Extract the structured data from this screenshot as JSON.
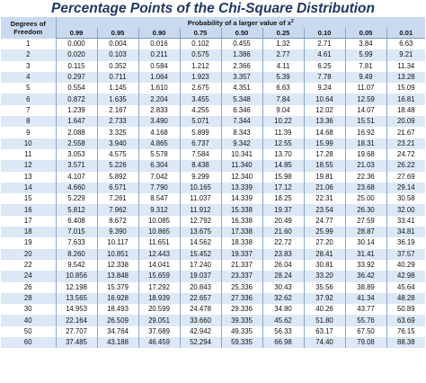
{
  "title": "Percentage Points of the Chi-Square Distribution",
  "header": {
    "dof_label_line1": "Degrees of",
    "dof_label_line2": "Freedom",
    "probability_label": "Probability of a larger value of x",
    "probability_superscript": "2"
  },
  "columns": [
    "0.99",
    "0.95",
    "0.90",
    "0.75",
    "0.50",
    "0.25",
    "0.10",
    "0.05",
    "0.01"
  ],
  "rows": [
    {
      "df": "1",
      "values": [
        "0.000",
        "0.004",
        "0.016",
        "0.102",
        "0.455",
        "1.32",
        "2.71",
        "3.84",
        "6.63"
      ]
    },
    {
      "df": "2",
      "values": [
        "0.020",
        "0.103",
        "0.211",
        "0.575",
        "1.386",
        "2.77",
        "4.61",
        "5.99",
        "9.21"
      ]
    },
    {
      "df": "3",
      "values": [
        "0.115",
        "0.352",
        "0.584",
        "1.212",
        "2.366",
        "4.11",
        "6.25",
        "7.81",
        "11.34"
      ]
    },
    {
      "df": "4",
      "values": [
        "0.297",
        "0.711",
        "1.064",
        "1.923",
        "3.357",
        "5.39",
        "7.78",
        "9.49",
        "13.28"
      ]
    },
    {
      "df": "5",
      "values": [
        "0.554",
        "1.145",
        "1.610",
        "2.675",
        "4.351",
        "6.63",
        "9.24",
        "11.07",
        "15.09"
      ]
    },
    {
      "df": "6",
      "values": [
        "0.872",
        "1.635",
        "2.204",
        "3.455",
        "5.348",
        "7.84",
        "10.64",
        "12.59",
        "16.81"
      ]
    },
    {
      "df": "7",
      "values": [
        "1.239",
        "2.167",
        "2.833",
        "4.255",
        "6.346",
        "9.04",
        "12.02",
        "14.07",
        "18.48"
      ]
    },
    {
      "df": "8",
      "values": [
        "1.647",
        "2.733",
        "3.490",
        "5.071",
        "7.344",
        "10.22",
        "13.36",
        "15.51",
        "20.09"
      ]
    },
    {
      "df": "9",
      "values": [
        "2.088",
        "3.325",
        "4.168",
        "5.899",
        "8.343",
        "11.39",
        "14.68",
        "16.92",
        "21.67"
      ]
    },
    {
      "df": "10",
      "values": [
        "2.558",
        "3.940",
        "4.865",
        "6.737",
        "9.342",
        "12.55",
        "15.99",
        "18.31",
        "23.21"
      ]
    },
    {
      "df": "11",
      "values": [
        "3.053",
        "4.575",
        "5.578",
        "7.584",
        "10.341",
        "13.70",
        "17.28",
        "19.68",
        "24.72"
      ]
    },
    {
      "df": "12",
      "values": [
        "3.571",
        "5.226",
        "6.304",
        "8.438",
        "11.340",
        "14.85",
        "18.55",
        "21.03",
        "26.22"
      ]
    },
    {
      "df": "13",
      "values": [
        "4.107",
        "5.892",
        "7.042",
        "9.299",
        "12.340",
        "15.98",
        "19.81",
        "22.36",
        "27.69"
      ]
    },
    {
      "df": "14",
      "values": [
        "4.660",
        "6.571",
        "7.790",
        "10.165",
        "13.339",
        "17.12",
        "21.06",
        "23.68",
        "29.14"
      ]
    },
    {
      "df": "15",
      "values": [
        "5.229",
        "7.261",
        "8.547",
        "11.037",
        "14.339",
        "18.25",
        "22.31",
        "25.00",
        "30.58"
      ]
    },
    {
      "df": "16",
      "values": [
        "5.812",
        "7.962",
        "9.312",
        "11.912",
        "15.338",
        "19.37",
        "23.54",
        "26.30",
        "32.00"
      ]
    },
    {
      "df": "17",
      "values": [
        "6.408",
        "8.672",
        "10.085",
        "12.792",
        "16.338",
        "20.49",
        "24.77",
        "27.59",
        "33.41"
      ]
    },
    {
      "df": "18",
      "values": [
        "7.015",
        "9.390",
        "10.865",
        "13.675",
        "17.338",
        "21.60",
        "25.99",
        "28.87",
        "34.81"
      ]
    },
    {
      "df": "19",
      "values": [
        "7.633",
        "10.117",
        "11.651",
        "14.562",
        "18.338",
        "22.72",
        "27.20",
        "30.14",
        "36.19"
      ]
    },
    {
      "df": "20",
      "values": [
        "8.260",
        "10.851",
        "12.443",
        "15.452",
        "19.337",
        "23.83",
        "28.41",
        "31.41",
        "37.57"
      ]
    },
    {
      "df": "22",
      "values": [
        "9.542",
        "12.338",
        "14.041",
        "17.240",
        "21.337",
        "26.04",
        "30.81",
        "33.92",
        "40.29"
      ]
    },
    {
      "df": "24",
      "values": [
        "10.856",
        "13.848",
        "15.659",
        "19.037",
        "23.337",
        "28.24",
        "33.20",
        "36.42",
        "42.98"
      ]
    },
    {
      "df": "26",
      "values": [
        "12.198",
        "15.379",
        "17.292",
        "20.843",
        "25.336",
        "30.43",
        "35.56",
        "38.89",
        "45.64"
      ]
    },
    {
      "df": "28",
      "values": [
        "13.565",
        "16.928",
        "18.939",
        "22.657",
        "27.336",
        "32.62",
        "37.92",
        "41.34",
        "48.28"
      ]
    },
    {
      "df": "30",
      "values": [
        "14.953",
        "18.493",
        "20.599",
        "24.478",
        "29.336",
        "34.80",
        "40.26",
        "43.77",
        "50.89"
      ]
    },
    {
      "df": "40",
      "values": [
        "22.164",
        "26.509",
        "29.051",
        "33.660",
        "39.335",
        "45.62",
        "51.80",
        "55.76",
        "63.69"
      ]
    },
    {
      "df": "50",
      "values": [
        "27.707",
        "34.764",
        "37.689",
        "42.942",
        "49.335",
        "56.33",
        "63.17",
        "67.50",
        "76.15"
      ]
    },
    {
      "df": "60",
      "values": [
        "37.485",
        "43.188",
        "46.459",
        "52.294",
        "59.335",
        "66.98",
        "74.40",
        "79.08",
        "88.38"
      ]
    }
  ]
}
